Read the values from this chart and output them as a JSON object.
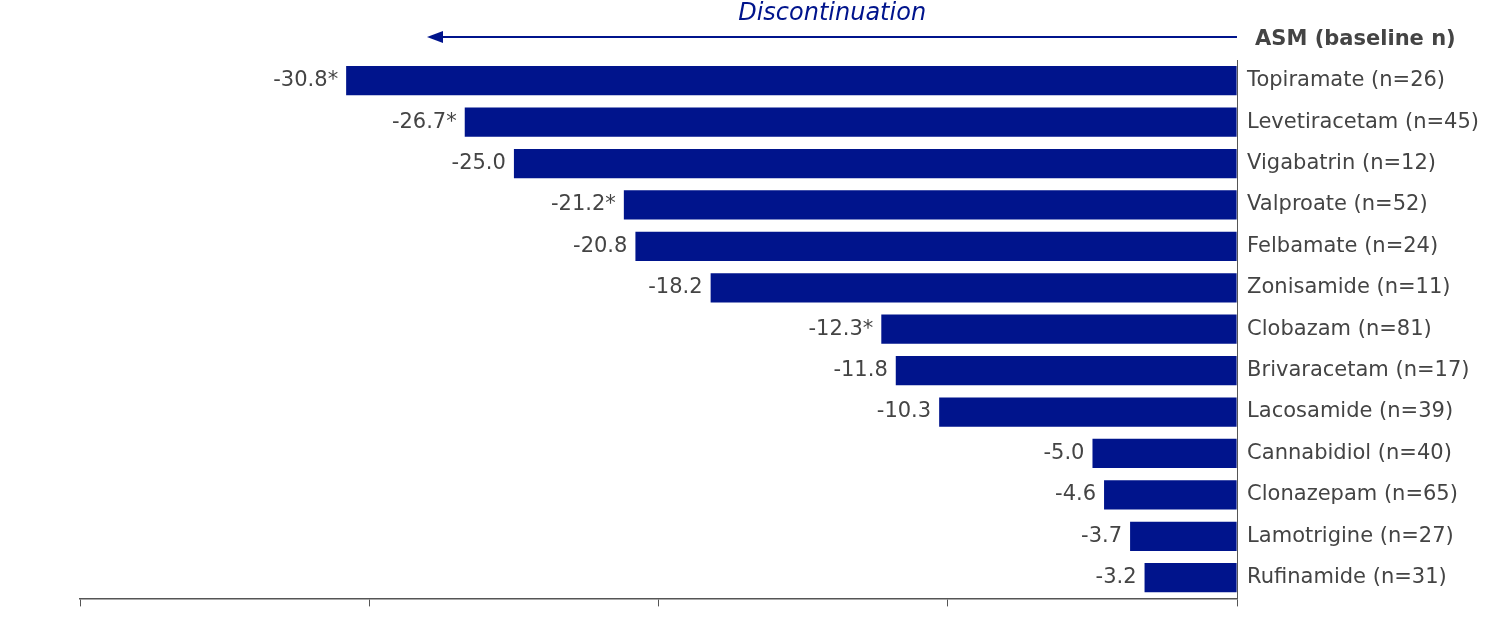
{
  "chart_data": {
    "type": "bar",
    "orientation": "horizontal",
    "title": "Discontinuation",
    "ylabel": "ASM (baseline n)",
    "categories": [
      "Topiramate (n=26)",
      "Levetiracetam (n=45)",
      "Vigabatrin (n=12)",
      "Valproate (n=52)",
      "Felbamate (n=24)",
      "Zonisamide (n=11)",
      "Clobazam (n=81)",
      "Brivaracetam (n=17)",
      "Lacosamide (n=39)",
      "Cannabidiol (n=40)",
      "Clonazepam (n=65)",
      "Lamotrigine (n=27)",
      "Rufinamide (n=31)"
    ],
    "values": [
      -30.8,
      -26.7,
      -25.0,
      -21.2,
      -20.8,
      -18.2,
      -12.3,
      -11.8,
      -10.3,
      -5.0,
      -4.6,
      -3.7,
      -3.2
    ],
    "value_labels": [
      "-30.8*",
      "-26.7*",
      "-25.0",
      "-21.2*",
      "-20.8",
      "-18.2",
      "-12.3*",
      "-11.8",
      "-10.3",
      "-5.0",
      "-4.6",
      "-3.7",
      "-3.2"
    ],
    "color": "#00148c",
    "xlim": [
      -40,
      0
    ],
    "xticks": [
      {
        "value": -40,
        "label": null
      },
      {
        "value": -30,
        "label": null
      },
      {
        "value": -20,
        "label": null
      },
      {
        "value": -10,
        "label": null
      },
      {
        "value": 0,
        "label": null
      }
    ],
    "tick_labels": "y",
    "grid": false,
    "legend": false
  }
}
